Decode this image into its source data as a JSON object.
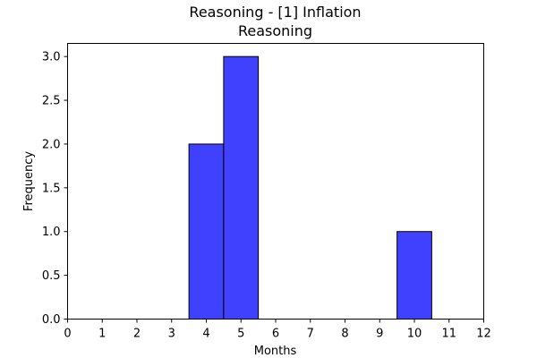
{
  "chart_data": {
    "type": "bar",
    "title_line1": "Reasoning - [1] Inflation",
    "title_line2": "Reasoning",
    "xlabel": "Months",
    "ylabel": "Frequency",
    "xlim": [
      0,
      12
    ],
    "ylim": [
      0,
      3.15
    ],
    "xticks": [
      "0",
      "1",
      "2",
      "3",
      "4",
      "5",
      "6",
      "7",
      "8",
      "9",
      "10",
      "11",
      "12"
    ],
    "yticks": [
      "0.0",
      "0.5",
      "1.0",
      "1.5",
      "2.0",
      "2.5",
      "3.0"
    ],
    "bins": [
      {
        "start": 3.5,
        "end": 4.5,
        "value": 2
      },
      {
        "start": 4.5,
        "end": 5.5,
        "value": 3
      },
      {
        "start": 9.5,
        "end": 10.5,
        "value": 1
      }
    ],
    "bar_color": "#4040ff",
    "bar_edge_color": "#000000",
    "grid": false,
    "legend": "none"
  }
}
